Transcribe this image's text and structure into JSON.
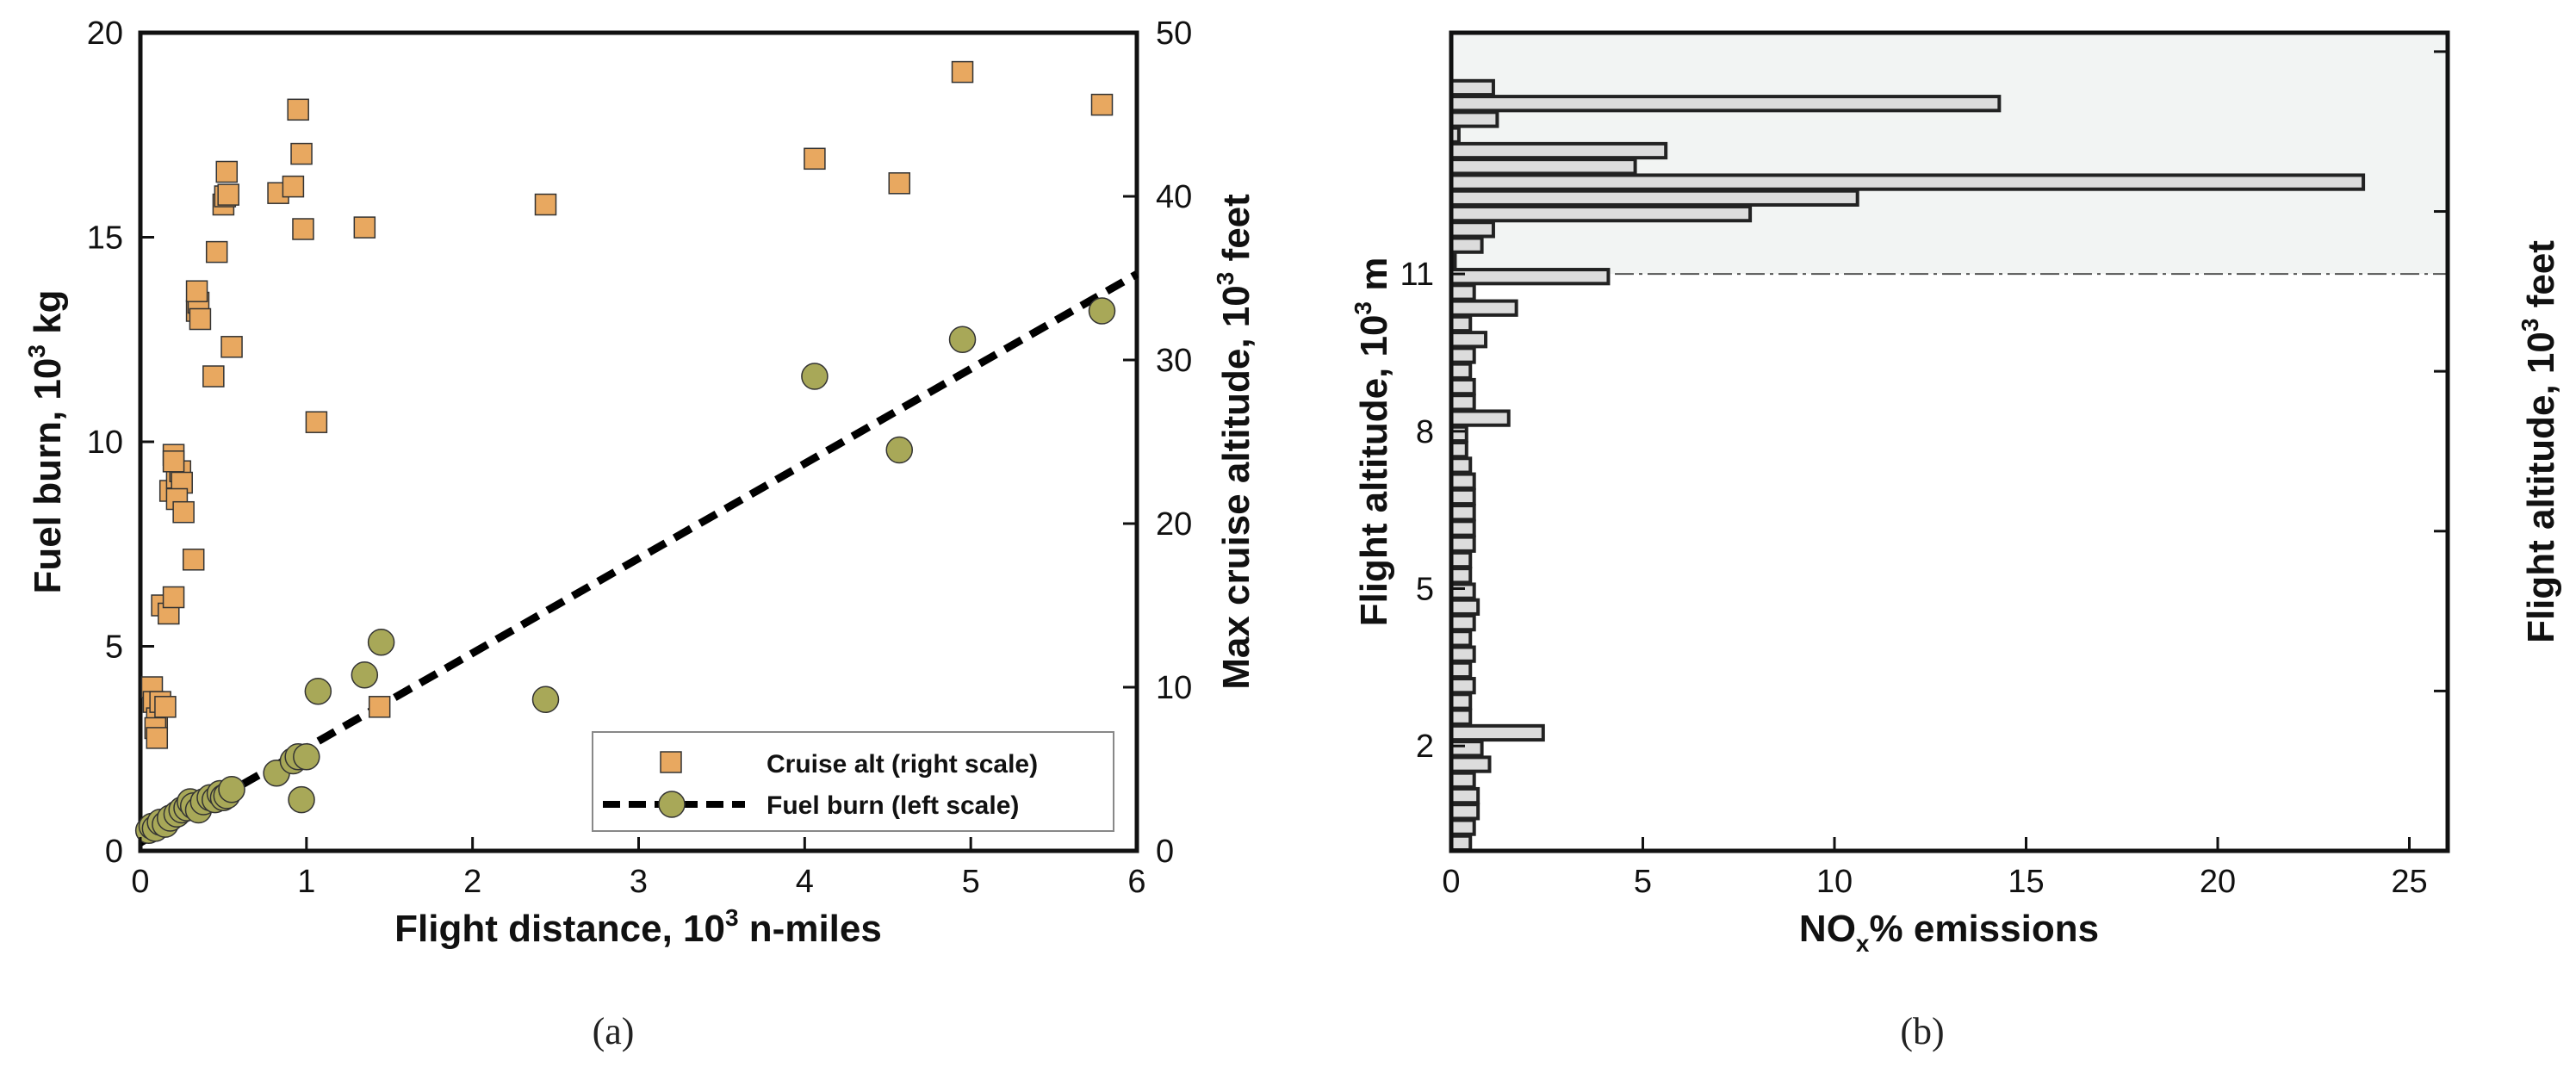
{
  "colors": {
    "square_fill": "#e8a860",
    "circle_fill": "#a8a858",
    "bar_fill": "#dcdcdc",
    "shade": "#f2f4f3",
    "edge": "#222222"
  },
  "chart_data": [
    {
      "type": "scatter",
      "caption": "(a)",
      "xlabel": {
        "main": "Flight distance, 10",
        "sup": "3",
        "rest": " n-miles"
      },
      "ylabel_left": {
        "main": "Fuel burn, 10",
        "sup": "3",
        "rest": " kg"
      },
      "ylabel_right": {
        "main": "Max cruise altitude, 10",
        "sup": "3",
        "rest": " feet"
      },
      "xlim": [
        0,
        6
      ],
      "ylim_left": [
        0,
        20
      ],
      "ylim_right": [
        0,
        50
      ],
      "xticks": [
        "0",
        "1",
        "2",
        "3",
        "4",
        "5",
        "6"
      ],
      "yticks_left": [
        "0",
        "5",
        "10",
        "15",
        "20"
      ],
      "yticks_right": [
        "0",
        "10",
        "20",
        "30",
        "40",
        "50"
      ],
      "legend": [
        {
          "label": "Cruise alt (right scale)",
          "marker": "square"
        },
        {
          "label": "Fuel burn (left scale)",
          "marker": "circle-dashed-line"
        }
      ],
      "series": [
        {
          "name": "Cruise alt (right scale)",
          "axis": "right",
          "marker": "square",
          "x": [
            0.07,
            0.08,
            0.1,
            0.09,
            0.1,
            0.13,
            0.17,
            0.12,
            0.15,
            0.2,
            0.18,
            0.2,
            0.22,
            0.24,
            0.2,
            0.25,
            0.22,
            0.26,
            0.32,
            0.34,
            0.35,
            0.34,
            0.36,
            0.44,
            0.46,
            0.5,
            0.52,
            0.51,
            0.53,
            0.55,
            0.83,
            0.92,
            0.95,
            0.97,
            0.98,
            1.06,
            1.35,
            1.44,
            2.44,
            4.06,
            4.57,
            4.95,
            5.79
          ],
          "y": [
            10,
            9.1,
            8.1,
            7.5,
            6.9,
            15,
            14.5,
            9.1,
            8.8,
            15.5,
            22,
            24.2,
            22.8,
            23.2,
            23.8,
            22.5,
            21.5,
            20.7,
            17.8,
            33,
            33.5,
            34.2,
            32.5,
            29,
            36.6,
            39.5,
            41.5,
            40,
            40.1,
            30.8,
            40.2,
            40.6,
            45.3,
            42.6,
            38,
            26.2,
            38.1,
            8.8,
            39.5,
            42.3,
            40.8,
            47.6,
            45.6
          ]
        },
        {
          "name": "Fuel burn (left scale)",
          "axis": "left",
          "marker": "circle",
          "x": [
            0.05,
            0.07,
            0.09,
            0.12,
            0.15,
            0.18,
            0.22,
            0.25,
            0.28,
            0.3,
            0.32,
            0.35,
            0.38,
            0.42,
            0.45,
            0.48,
            0.5,
            0.52,
            0.55,
            0.82,
            0.92,
            0.95,
            0.97,
            1.0,
            1.07,
            1.35,
            1.45,
            2.44,
            4.06,
            4.57,
            4.95,
            5.79
          ],
          "y": [
            0.5,
            0.6,
            0.55,
            0.7,
            0.65,
            0.8,
            0.9,
            1.0,
            1.05,
            1.2,
            1.1,
            1.0,
            1.2,
            1.3,
            1.25,
            1.4,
            1.3,
            1.35,
            1.5,
            1.9,
            2.2,
            2.3,
            1.25,
            2.3,
            3.9,
            4.3,
            5.1,
            3.7,
            11.6,
            9.8,
            12.5,
            13.2
          ]
        },
        {
          "name": "Fuel burn fit",
          "axis": "left",
          "type": "line",
          "x": [
            0,
            6
          ],
          "y": [
            0.2,
            14.1
          ]
        }
      ]
    },
    {
      "type": "bar",
      "orientation": "horizontal",
      "caption": "(b)",
      "xlabel": {
        "main": "NO",
        "sub": "x",
        "rest": "% emissions"
      },
      "ylabel_left": {
        "main": "Flight altitude, 10",
        "sup": "3",
        "rest": " m"
      },
      "ylabel_right": {
        "main": "Flight altitude, 10",
        "sup": "3",
        "rest": " feet"
      },
      "xlim": [
        0,
        26
      ],
      "ylim": [
        0,
        15.6
      ],
      "xticks": [
        "0",
        "5",
        "10",
        "15",
        "20",
        "25"
      ],
      "yticks": [
        "2",
        "5",
        "8",
        "11"
      ],
      "tropopause_altitude": 11,
      "bin_width": 0.3,
      "bins": [
        0.15,
        0.45,
        0.75,
        1.05,
        1.35,
        1.65,
        1.95,
        2.25,
        2.55,
        2.85,
        3.15,
        3.45,
        3.75,
        4.05,
        4.35,
        4.65,
        4.95,
        5.25,
        5.55,
        5.85,
        6.15,
        6.45,
        6.75,
        7.05,
        7.35,
        7.65,
        7.95,
        8.25,
        8.55,
        8.85,
        9.15,
        9.45,
        9.75,
        10.05,
        10.35,
        10.65,
        10.95,
        11.25,
        11.55,
        11.85,
        12.15,
        12.45,
        12.75,
        13.05,
        13.35,
        13.65,
        13.95,
        14.25,
        14.55,
        14.85,
        15.15
      ],
      "values": [
        0.5,
        0.6,
        0.7,
        0.7,
        0.6,
        1.0,
        0.8,
        2.4,
        0.5,
        0.5,
        0.6,
        0.5,
        0.6,
        0.5,
        0.6,
        0.7,
        0.6,
        0.5,
        0.5,
        0.6,
        0.6,
        0.6,
        0.6,
        0.6,
        0.5,
        0.4,
        0.4,
        1.5,
        0.6,
        0.6,
        0.5,
        0.6,
        0.9,
        0.5,
        1.7,
        0.6,
        4.1,
        0.1,
        0.8,
        1.1,
        7.8,
        10.6,
        23.8,
        4.8,
        5.6,
        0.2,
        1.2,
        14.3,
        1.1,
        0,
        0
      ]
    }
  ]
}
